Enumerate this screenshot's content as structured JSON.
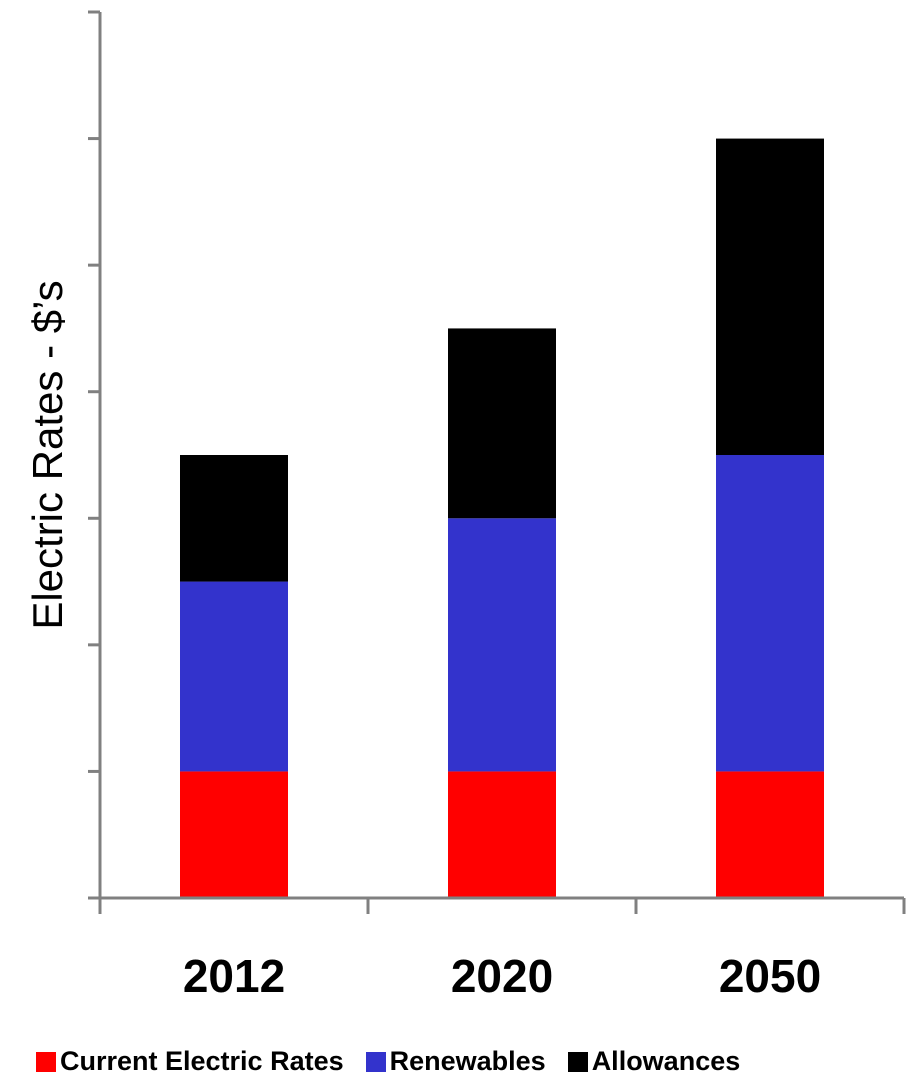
{
  "chart_data": {
    "type": "bar",
    "stacked": true,
    "categories": [
      "2012",
      "2020",
      "2050"
    ],
    "series": [
      {
        "name": "Current Electric Rates",
        "color": "#ff0000",
        "values": [
          1,
          1,
          1
        ]
      },
      {
        "name": "Renewables",
        "color": "#3333cc",
        "values": [
          1.5,
          2,
          2.5
        ]
      },
      {
        "name": "Allowances",
        "color": "#000000",
        "values": [
          1,
          1.5,
          2.5
        ]
      }
    ],
    "title": "",
    "xlabel": "",
    "ylabel": "Electric Rates - $’s",
    "ylim": [
      0,
      7
    ],
    "y_ticks": [
      0,
      1,
      2,
      3,
      4,
      5,
      6,
      7
    ],
    "y_tick_labels_visible": false,
    "grid": false,
    "legend_position": "bottom"
  }
}
